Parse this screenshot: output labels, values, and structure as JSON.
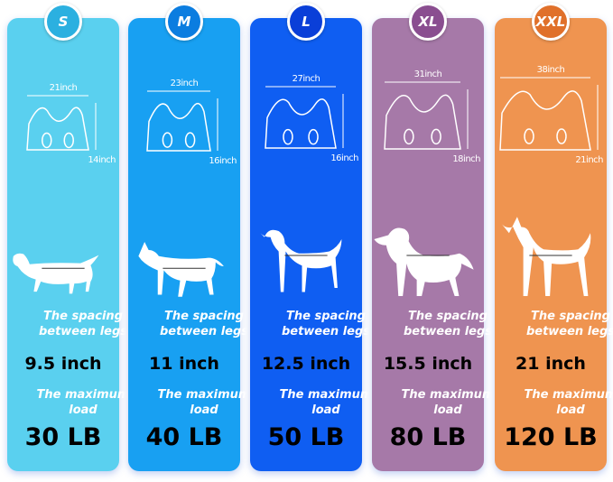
{
  "labels": {
    "spacing": "The spacing between legs",
    "load": "The maximum load"
  },
  "sizes": [
    {
      "size": "S",
      "width": "21inch",
      "height": "14inch",
      "leg_spacing": "9.5 inch",
      "max_load": "30 LB",
      "color": "#5ad0ef",
      "badge_color": "#2bb0e0"
    },
    {
      "size": "M",
      "width": "23inch",
      "height": "16inch",
      "leg_spacing": "11 inch",
      "max_load": "40 LB",
      "color": "#18a0f2",
      "badge_color": "#0b7de0"
    },
    {
      "size": "L",
      "width": "27inch",
      "height": "16inch",
      "leg_spacing": "12.5 inch",
      "max_load": "50 LB",
      "color": "#0f5ef2",
      "badge_color": "#0a3fd8"
    },
    {
      "size": "XL",
      "width": "31inch",
      "height": "18inch",
      "leg_spacing": "15.5 inch",
      "max_load": "80 LB",
      "color": "#a679a8",
      "badge_color": "#8a4e90"
    },
    {
      "size": "XXL",
      "width": "38inch",
      "height": "21inch",
      "leg_spacing": "21 inch",
      "max_load": "120 LB",
      "color": "#ef9450",
      "badge_color": "#e0702a"
    }
  ]
}
